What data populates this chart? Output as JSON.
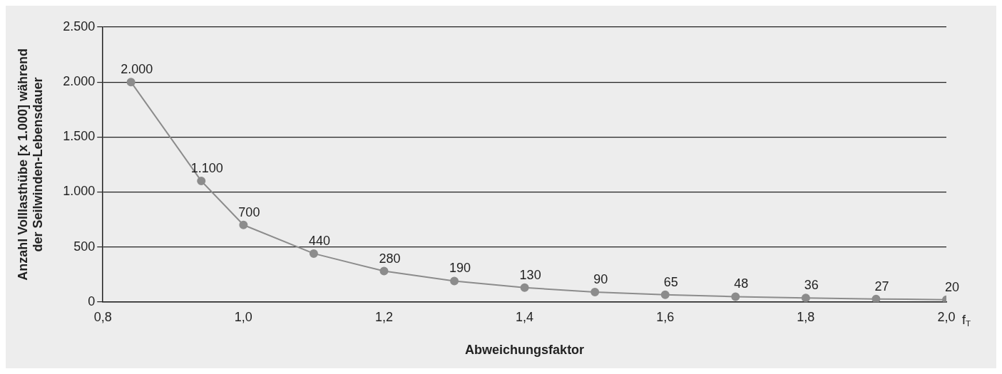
{
  "chart_data": {
    "type": "line",
    "xlabel": "Abweichungsfaktor",
    "ylabel": "Anzahl Volllasthübe [x 1.000] während\nder Seilwinden-Lebensdauer",
    "x": [
      0.84,
      0.94,
      1.0,
      1.1,
      1.2,
      1.3,
      1.4,
      1.5,
      1.6,
      1.7,
      1.8,
      1.9,
      2.0
    ],
    "series": [
      {
        "color": "#8c8c8c",
        "values": [
          2000,
          1100,
          700,
          440,
          280,
          190,
          130,
          90,
          65,
          48,
          36,
          27,
          20
        ],
        "value_labels": [
          "2.000",
          "1.100",
          "700",
          "440",
          "280",
          "190",
          "130",
          "90",
          "65",
          "48",
          "36",
          "27",
          "20"
        ]
      }
    ],
    "xlim": [
      0.8,
      2.0
    ],
    "xticks": [
      {
        "value": 0.8,
        "label": "0,8"
      },
      {
        "value": 1.0,
        "label": "1,0"
      },
      {
        "value": 1.2,
        "label": "1,2"
      },
      {
        "value": 1.4,
        "label": "1,4"
      },
      {
        "value": 1.6,
        "label": "1,6"
      },
      {
        "value": 1.8,
        "label": "1,8"
      },
      {
        "value": 2.0,
        "label": "2,0"
      }
    ],
    "ylim": [
      0,
      2500
    ],
    "yticks": [
      0,
      {
        "value": 500,
        "label": "500"
      },
      {
        "value": 1000,
        "label": "1.000"
      },
      {
        "value": 1500,
        "label": "1.500"
      },
      {
        "value": 2000,
        "label": "2.000"
      },
      {
        "value": 2500,
        "label": "2.500"
      }
    ],
    "grid": "y",
    "marker": "circle",
    "line_style": "solid",
    "legend": false,
    "annotations": [
      "f$_{T}$"
    ]
  }
}
